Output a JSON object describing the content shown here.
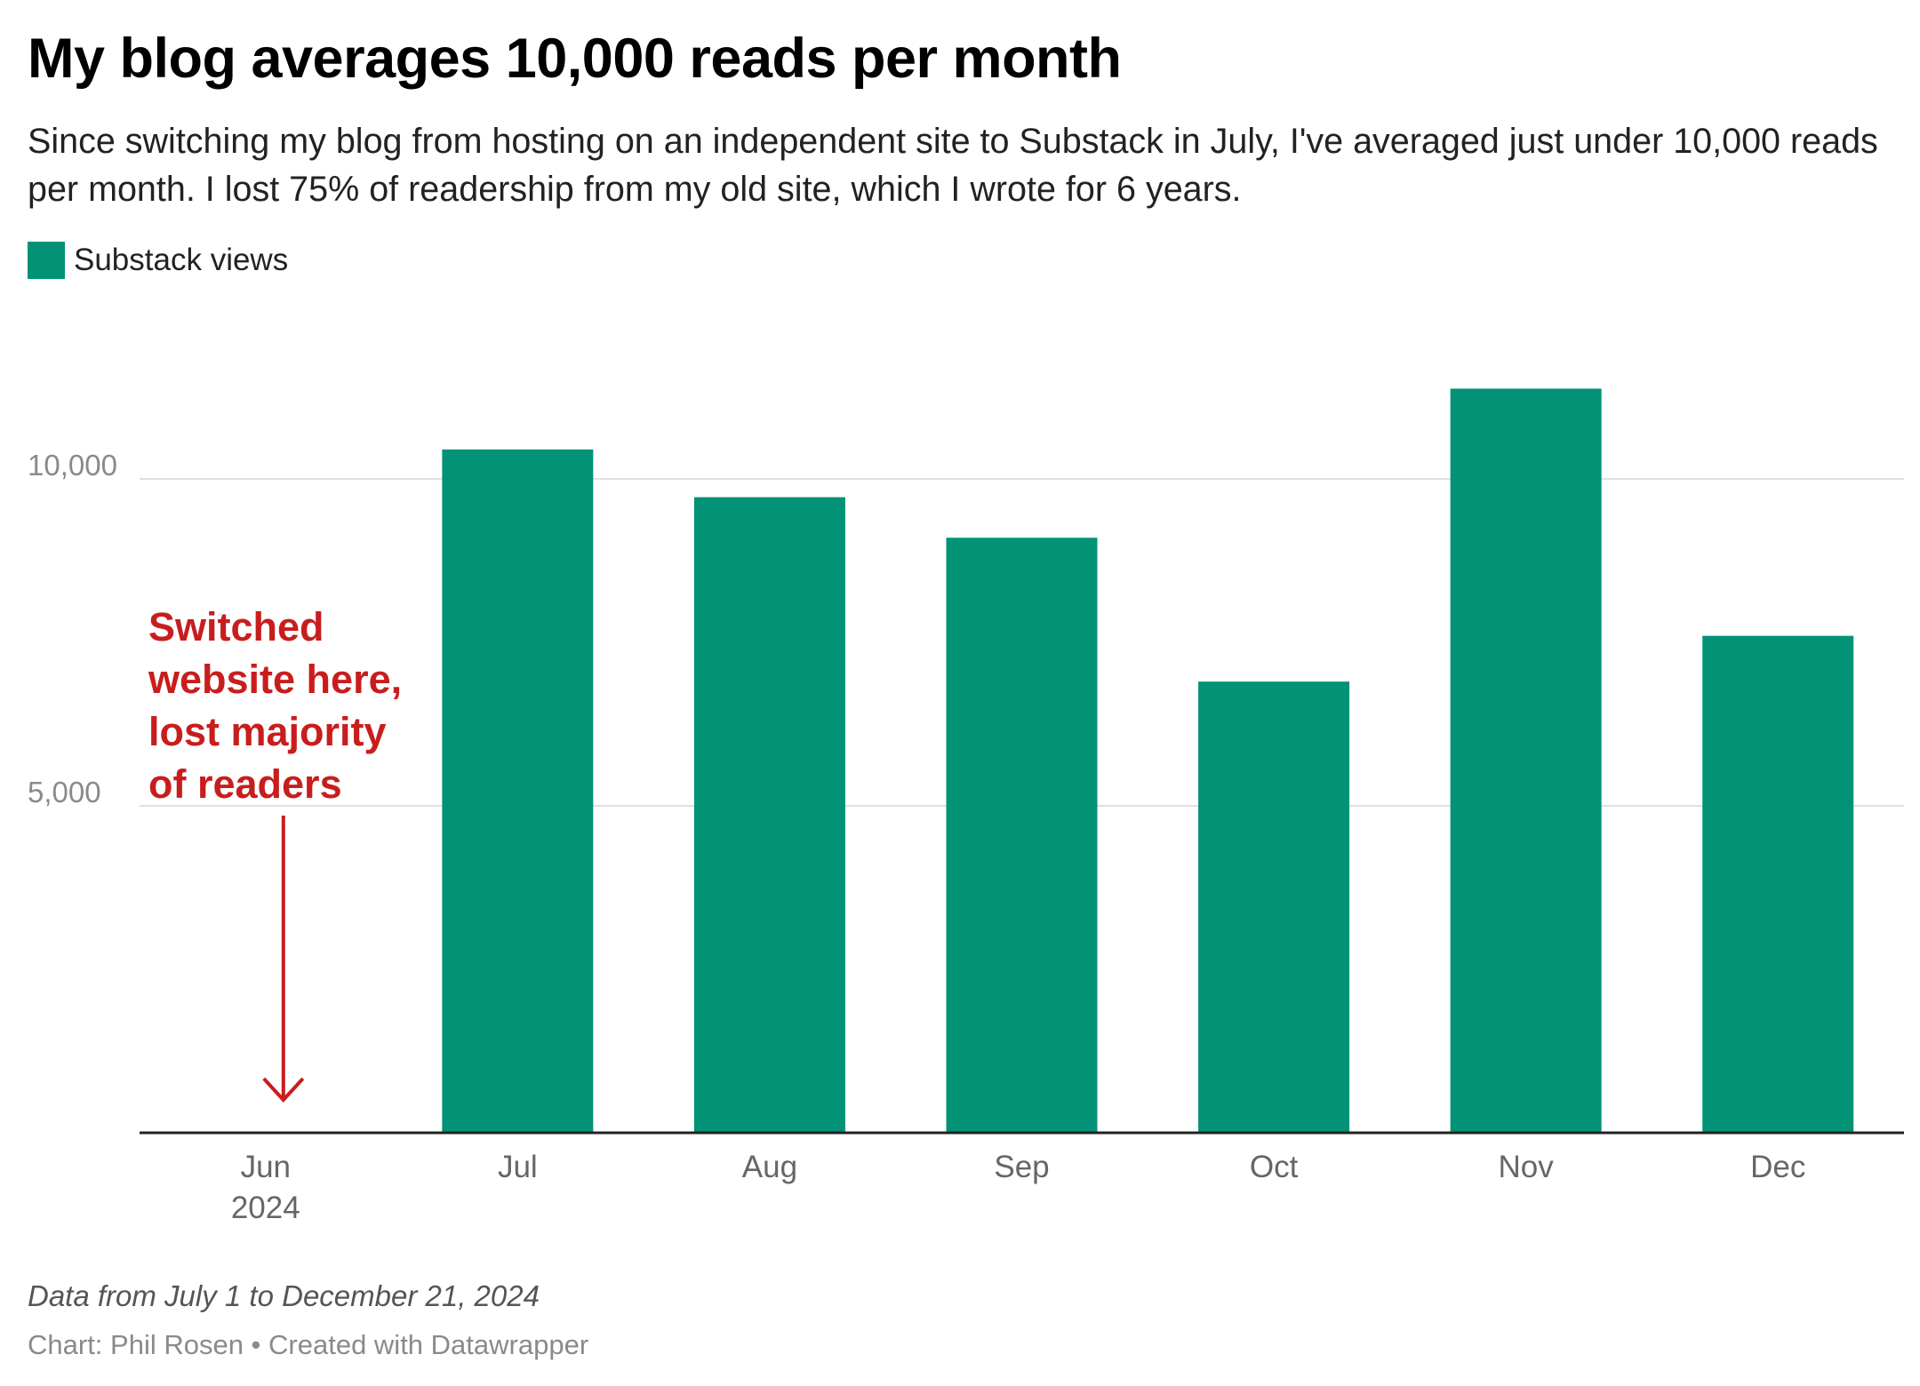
{
  "header": {
    "title": "My blog averages 10,000 reads per month",
    "subtitle": "Since switching my blog from hosting on an independent site to Substack in July, I've averaged just under 10,000 reads per month. I lost 75% of readership from my old site, which I wrote for 6 years."
  },
  "colors": {
    "bar": "#029276",
    "annotation": "#c71e1d",
    "grid": "#e0e0e0",
    "axis": "#222222",
    "tick": "#8a8a8a"
  },
  "chart_data": {
    "type": "bar",
    "title": "My blog averages 10,000 reads per month",
    "categories": [
      "Jun",
      "Jul",
      "Aug",
      "Sep",
      "Oct",
      "Nov",
      "Dec"
    ],
    "category_sublabels": [
      "2024",
      "",
      "",
      "",
      "",
      "",
      ""
    ],
    "series": [
      {
        "name": "Substack views",
        "values": [
          0,
          10450,
          9720,
          9100,
          6900,
          11380,
          7600
        ]
      }
    ],
    "ylim": [
      0,
      12000
    ],
    "yticks": [
      5000,
      10000
    ],
    "ytick_labels": [
      "5,000",
      "10,000"
    ],
    "xlabel": "",
    "ylabel": "",
    "grid": true,
    "legend": "top-left",
    "annotation": {
      "lines": [
        "Switched",
        "website here,",
        "lost majority",
        "of readers"
      ],
      "target_category": "Jun"
    }
  },
  "footer": {
    "note": "Data from July 1 to December 21, 2024",
    "credit": "Chart: Phil Rosen • Created with Datawrapper"
  }
}
